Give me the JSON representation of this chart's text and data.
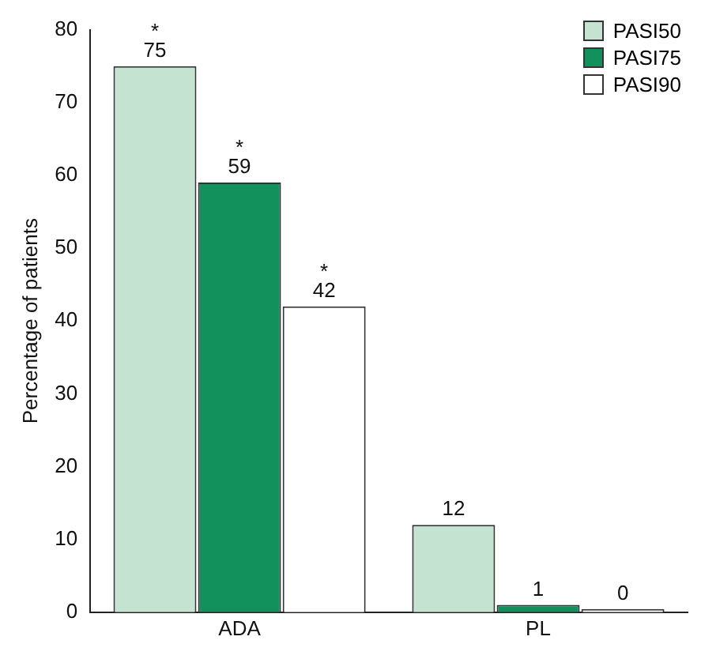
{
  "chart_data": {
    "type": "bar",
    "ylabel": "Percentage of patients",
    "categories": [
      "ADA",
      "PL"
    ],
    "series": [
      {
        "name": "PASI50",
        "color": "#c4e3d0",
        "values": [
          75,
          12
        ]
      },
      {
        "name": "PASI75",
        "color": "#13915c",
        "values": [
          59,
          1
        ]
      },
      {
        "name": "PASI90",
        "color": "#ffffff",
        "values": [
          42,
          0
        ]
      }
    ],
    "ylim": [
      0,
      80
    ],
    "yticks": [
      0,
      10,
      20,
      30,
      40,
      50,
      60,
      70,
      80
    ],
    "grid": false,
    "legend": "top right",
    "data_labels": true,
    "annotations": [
      "*",
      "*",
      "*"
    ]
  }
}
